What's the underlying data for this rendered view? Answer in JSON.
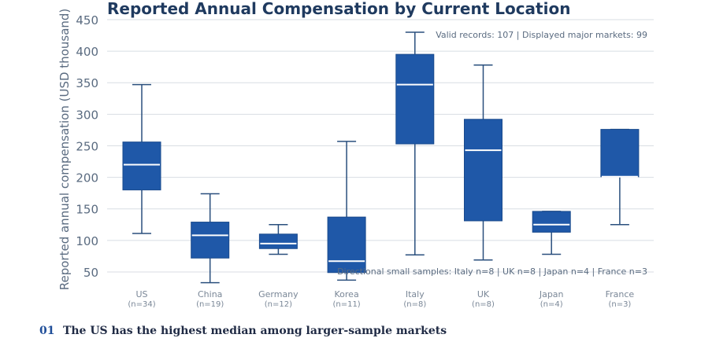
{
  "chart_data": {
    "type": "box",
    "title": "Reported Annual Compensation by Current Location",
    "ylabel": "Reported annual compensation (USD thousand)",
    "ylim": [
      25,
      450
    ],
    "yticks": [
      50,
      100,
      150,
      200,
      250,
      300,
      350,
      400,
      450
    ],
    "grid": true,
    "note_top": "Valid records: 107 | Displayed major markets: 99",
    "note_bottom": "Directional small samples: Italy n=8 | UK n=8 | Japan n=4 | France n=3",
    "colors": {
      "box": "#1f58a8",
      "median": "#ffffff",
      "whisker": "#2a4f7d",
      "grid": "#d8dde3"
    },
    "categories": [
      {
        "name": "US",
        "n": "(n=34)",
        "min": 111,
        "q1": 180,
        "median": 220,
        "q3": 256,
        "max": 347
      },
      {
        "name": "China",
        "n": "(n=19)",
        "min": 33,
        "q1": 72,
        "median": 108,
        "q3": 129,
        "max": 174
      },
      {
        "name": "Germany",
        "n": "(n=12)",
        "min": 78,
        "q1": 87,
        "median": 95,
        "q3": 110,
        "max": 125
      },
      {
        "name": "Korea",
        "n": "(n=11)",
        "min": 37,
        "q1": 49,
        "median": 67,
        "q3": 137,
        "max": 257
      },
      {
        "name": "Italy",
        "n": "(n=8)",
        "min": 77,
        "q1": 253,
        "median": 347,
        "q3": 395,
        "max": 430
      },
      {
        "name": "UK",
        "n": "(n=8)",
        "min": 69,
        "q1": 131,
        "median": 243,
        "q3": 292,
        "max": 378
      },
      {
        "name": "Japan",
        "n": "(n=4)",
        "min": 78,
        "q1": 113,
        "median": 125,
        "q3": 146,
        "max": 146
      },
      {
        "name": "France",
        "n": "(n=3)",
        "min": 125,
        "q1": 201,
        "median": 201,
        "q3": 276,
        "max": 276
      }
    ]
  },
  "footer": {
    "number": "01",
    "text": "The US has the highest median among larger-sample markets"
  }
}
